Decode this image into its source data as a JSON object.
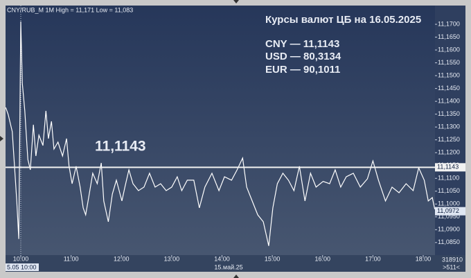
{
  "chart_data": {
    "type": "line",
    "title": "CNY/RUB_M 1M High = 11,171 Low = 11,083",
    "annotations": [
      "Курсы валют ЦБ на 16.05.2025",
      "CNY — 11,1143",
      "USD — 80,3134",
      "EUR — 90,1011"
    ],
    "reference_line": {
      "value": 11.1143,
      "label": "11,1143"
    },
    "last_price": {
      "value": 11.0972,
      "label": "11,0972"
    },
    "cursor_label": "5.05 10:00",
    "date_label": "15.май.25",
    "volume_label": "318910",
    "scroll_label": ">511<",
    "color": "#ffffff",
    "x": [
      9.7,
      9.75,
      9.83,
      9.92,
      9.96,
      10.0,
      10.03,
      10.08,
      10.14,
      10.19,
      10.25,
      10.3,
      10.36,
      10.44,
      10.5,
      10.55,
      10.61,
      10.66,
      10.74,
      10.83,
      10.91,
      10.96,
      11.02,
      11.1,
      11.18,
      11.24,
      11.29,
      11.35,
      11.43,
      11.52,
      11.6,
      11.65,
      11.74,
      11.82,
      11.9,
      12.01,
      12.07,
      12.15,
      12.23,
      12.34,
      12.45,
      12.56,
      12.67,
      12.78,
      12.89,
      13.0,
      13.11,
      13.2,
      13.31,
      13.44,
      13.55,
      13.66,
      13.8,
      13.94,
      14.05,
      14.19,
      14.3,
      14.41,
      14.49,
      14.6,
      14.71,
      14.82,
      14.93,
      15.01,
      15.1,
      15.21,
      15.32,
      15.43,
      15.54,
      15.65,
      15.76,
      15.87,
      16.01,
      16.14,
      16.25,
      16.36,
      16.47,
      16.61,
      16.75,
      16.89,
      17.0,
      17.11,
      17.25,
      17.38,
      17.52,
      17.66,
      17.8,
      17.91,
      18.02,
      18.1,
      18.18,
      18.23
    ],
    "values": [
      11.1376,
      11.1349,
      11.1282,
      11.1012,
      11.0864,
      11.1711,
      11.1471,
      11.1363,
      11.1174,
      11.1133,
      11.1309,
      11.1187,
      11.1268,
      11.1228,
      11.1363,
      11.1255,
      11.1322,
      11.1214,
      11.1241,
      11.1187,
      11.1255,
      11.1147,
      11.1079,
      11.1147,
      11.1066,
      11.0985,
      11.0958,
      11.1025,
      11.112,
      11.1079,
      11.116,
      11.1012,
      11.0931,
      11.1039,
      11.1093,
      11.1012,
      11.1066,
      11.1133,
      11.1079,
      11.1052,
      11.1066,
      11.112,
      11.1066,
      11.1079,
      11.1052,
      11.1066,
      11.1106,
      11.1052,
      11.1093,
      11.1093,
      11.0985,
      11.1066,
      11.112,
      11.1052,
      11.1106,
      11.1093,
      11.1133,
      11.1179,
      11.1066,
      11.1012,
      11.0958,
      11.0931,
      11.0837,
      11.0985,
      11.1079,
      11.112,
      11.1093,
      11.1052,
      11.1147,
      11.1012,
      11.112,
      11.1066,
      11.1088,
      11.1079,
      11.1133,
      11.1066,
      11.1106,
      11.112,
      11.1066,
      11.1098,
      11.1168,
      11.1093,
      11.1012,
      11.1066,
      11.1044,
      11.1079,
      11.1052,
      11.1141,
      11.1093,
      11.1012,
      11.1025,
      11.098
    ],
    "xlim": [
      9.697,
      18.234
    ],
    "xticks": [
      {
        "value": 10,
        "label": "10:00"
      },
      {
        "value": 11,
        "label": "11:00"
      },
      {
        "value": 12,
        "label": "12:00"
      },
      {
        "value": 13,
        "label": "13:00"
      },
      {
        "value": 14,
        "label": "14:00"
      },
      {
        "value": 15,
        "label": "15:00"
      },
      {
        "value": 16,
        "label": "16:00"
      },
      {
        "value": 17,
        "label": "17:00"
      },
      {
        "value": 18,
        "label": "18:00"
      }
    ],
    "ylim": [
      11.0801,
      11.1773
    ],
    "yticks": [
      {
        "value": 11.085,
        "label": "11,0850"
      },
      {
        "value": 11.09,
        "label": "11,0900"
      },
      {
        "value": 11.095,
        "label": "11,0950"
      },
      {
        "value": 11.1,
        "label": "11,1000"
      },
      {
        "value": 11.105,
        "label": "11,1050"
      },
      {
        "value": 11.11,
        "label": "11,1100"
      },
      {
        "value": 11.115,
        "label": "11,1150"
      },
      {
        "value": 11.12,
        "label": "11,1200"
      },
      {
        "value": 11.125,
        "label": "11,1250"
      },
      {
        "value": 11.13,
        "label": "11,1300"
      },
      {
        "value": 11.135,
        "label": "11,1350"
      },
      {
        "value": 11.14,
        "label": "11,1400"
      },
      {
        "value": 11.145,
        "label": "11,1450"
      },
      {
        "value": 11.15,
        "label": "11,1500"
      },
      {
        "value": 11.155,
        "label": "11,1550"
      },
      {
        "value": 11.16,
        "label": "11,1600"
      },
      {
        "value": 11.165,
        "label": "11,1650"
      },
      {
        "value": 11.17,
        "label": "11,1700"
      }
    ]
  }
}
